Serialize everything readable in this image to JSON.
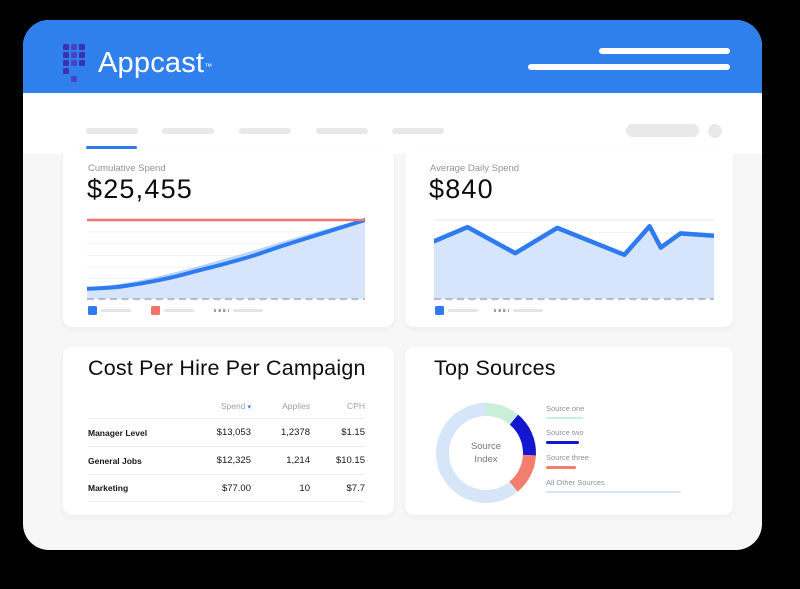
{
  "colors": {
    "header_blue": "#2f80ed",
    "logo_square_dark": "#3a33ad",
    "logo_square_light": "#4a43c6",
    "chart_blue": "#2e7bf0",
    "chart_area_fill": "#d6e5fb",
    "target_red": "#f0756a",
    "page_bg": "#f7f7f8",
    "donut_mint": "#c9efd9",
    "donut_royal": "#1417cf",
    "donut_salmon": "#f37e70",
    "donut_lightblue": "#d7e5f8"
  },
  "header": {
    "brand": "Appcast",
    "trademark": "™",
    "logo_icon": "appcast-dots-logo"
  },
  "cards": {
    "cumulative_spend": {
      "label": "Cumulative Spend",
      "value": "$25,455",
      "chart_data": {
        "type": "area",
        "title": "Cumulative Spend",
        "final_value": "$25,455",
        "axes": "unlabeled; values normalized 0-1 of target line",
        "x": [
          0,
          0.1,
          0.2,
          0.3,
          0.4,
          0.5,
          0.6,
          0.7,
          0.8,
          0.9,
          1
        ],
        "series": [
          {
            "name": "cumulative-spend",
            "color": "#2e7bf0",
            "values": [
              0.13,
              0.15,
              0.2,
              0.27,
              0.36,
              0.45,
              0.55,
              0.67,
              0.78,
              0.89,
              1.0
            ]
          },
          {
            "name": "fill-edge-light",
            "color": "#b9d2f7",
            "values": [
              0.13,
              0.17,
              0.23,
              0.31,
              0.4,
              0.5,
              0.6,
              0.71,
              0.81,
              0.91,
              1.0
            ]
          }
        ],
        "target_line": {
          "value": 1.0,
          "color": "#f0756a"
        },
        "gridline_values": [
          0.11,
          0.26,
          0.4,
          0.55,
          0.7,
          0.85
        ],
        "baseline": "dashed",
        "legend": [
          "blue-series-placeholder",
          "red-target-placeholder",
          "dashed-baseline-placeholder"
        ]
      }
    },
    "average_daily_spend": {
      "label": "Average Daily Spend",
      "value": "$840",
      "chart_data": {
        "type": "area",
        "title": "Average Daily Spend",
        "axes": "unlabeled; values normalized 0-1 of top gridline",
        "x": [
          0,
          0.12,
          0.29,
          0.44,
          0.68,
          0.77,
          0.81,
          0.88,
          1
        ],
        "series": [
          {
            "name": "daily-spend",
            "color": "#2e7bf0",
            "values": [
              0.73,
              0.91,
              0.58,
              0.9,
              0.56,
              0.92,
              0.65,
              0.83,
              0.8
            ]
          }
        ],
        "gridline_values": [
          1.0,
          0.84,
          0.63
        ],
        "baseline": "dashed",
        "legend": [
          "blue-series-placeholder",
          "dashed-baseline-placeholder"
        ]
      }
    },
    "cost_per_hire": {
      "title": "Cost Per Hire Per Campaign",
      "columns": [
        {
          "label": "Spend",
          "sort_indicator": "▾"
        },
        {
          "label": "Applies"
        },
        {
          "label": "CPH"
        }
      ],
      "rows": [
        {
          "name": "Manager Level",
          "spend": "$13,053",
          "applies": "1,2378",
          "cph": "$1.15"
        },
        {
          "name": "General Jobs",
          "spend": "$12,325",
          "applies": "1,214",
          "cph": "$10.15"
        },
        {
          "name": "Marketing",
          "spend": "$77.00",
          "applies": "10",
          "cph": "$7.7"
        }
      ]
    },
    "top_sources": {
      "title": "Top Sources",
      "center_label": {
        "line1": "Source",
        "line2": "Index"
      },
      "chart_data": {
        "type": "donut",
        "center_label": "Source Index",
        "legend_position": "right",
        "segments": [
          {
            "label": "Source one",
            "percent": 11.1,
            "color": "#c9efd9"
          },
          {
            "label": "Source two",
            "percent": 14.7,
            "color": "#1417cf"
          },
          {
            "label": "Source three",
            "percent": 13.3,
            "color": "#f37e70"
          },
          {
            "label": "All Other Sources",
            "percent": 60.9,
            "color": "#d7e5f8"
          }
        ]
      }
    }
  }
}
